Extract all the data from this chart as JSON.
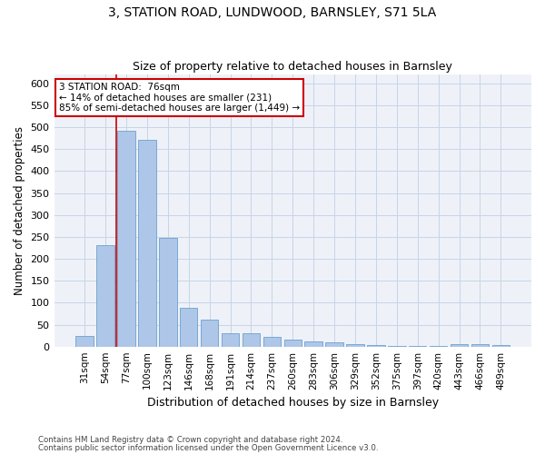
{
  "title": "3, STATION ROAD, LUNDWOOD, BARNSLEY, S71 5LA",
  "subtitle": "Size of property relative to detached houses in Barnsley",
  "xlabel": "Distribution of detached houses by size in Barnsley",
  "ylabel": "Number of detached properties",
  "footer1": "Contains HM Land Registry data © Crown copyright and database right 2024.",
  "footer2": "Contains public sector information licensed under the Open Government Licence v3.0.",
  "categories": [
    "31sqm",
    "54sqm",
    "77sqm",
    "100sqm",
    "123sqm",
    "146sqm",
    "168sqm",
    "191sqm",
    "214sqm",
    "237sqm",
    "260sqm",
    "283sqm",
    "306sqm",
    "329sqm",
    "352sqm",
    "375sqm",
    "397sqm",
    "420sqm",
    "443sqm",
    "466sqm",
    "489sqm"
  ],
  "values": [
    25,
    231,
    492,
    471,
    248,
    88,
    62,
    31,
    30,
    22,
    15,
    11,
    10,
    5,
    4,
    1,
    1,
    1,
    6,
    6,
    4
  ],
  "bar_color": "#aec6e8",
  "bar_edge_color": "#5a96c8",
  "grid_color": "#c8d4e8",
  "background_color": "#eef2f8",
  "red_line_bar_index": 2,
  "red_line_color": "#cc0000",
  "annotation_text": "3 STATION ROAD:  76sqm\n← 14% of detached houses are smaller (231)\n85% of semi-detached houses are larger (1,449) →",
  "annotation_box_color": "#ffffff",
  "annotation_box_edge": "#cc0000",
  "ylim": [
    0,
    620
  ],
  "yticks": [
    0,
    50,
    100,
    150,
    200,
    250,
    300,
    350,
    400,
    450,
    500,
    550,
    600
  ]
}
